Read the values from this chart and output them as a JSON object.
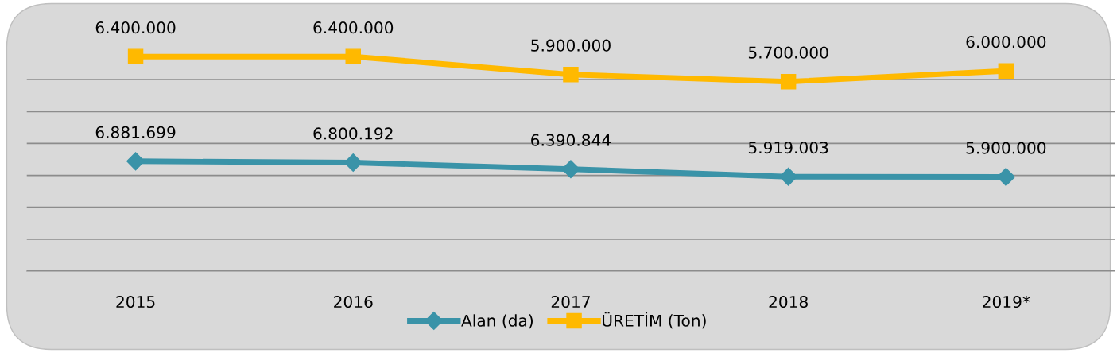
{
  "chart_data": {
    "type": "line",
    "categories": [
      "2015",
      "2016",
      "2017",
      "2018",
      "2019*"
    ],
    "series": [
      {
        "name": "Alan (da)",
        "color": "#3a93a8",
        "marker": "diamond",
        "values": [
          6881699,
          6800192,
          6390844,
          5919003,
          5900000
        ],
        "value_labels": [
          "6.881.699",
          "6.800.192",
          "6.390.844",
          "5.919.003",
          "5.900.000"
        ]
      },
      {
        "name": "ÜRETİM (Ton)",
        "color": "#ffb900",
        "marker": "square",
        "axis": "y2",
        "values": [
          6400000,
          6400000,
          5900000,
          5700000,
          6000000
        ],
        "value_labels": [
          "6.400.000",
          "6.400.000",
          "5.900.000",
          "5.700.000",
          "6.000.000"
        ]
      }
    ],
    "ylim": [
      0,
      14000000
    ],
    "yticks": [
      {
        "value": 0,
        "label": null
      },
      {
        "value": 2000000,
        "label": null
      },
      {
        "value": 4000000,
        "label": null
      },
      {
        "value": 6000000,
        "label": null
      },
      {
        "value": 8000000,
        "label": null
      },
      {
        "value": 10000000,
        "label": null
      },
      {
        "value": 12000000,
        "label": null
      },
      {
        "value": 14000000,
        "label": null
      }
    ],
    "y2lim": [
      400000,
      6650000
    ],
    "tick_labels": "x",
    "grid": "y",
    "legend": "bottom",
    "line_style": "solid"
  }
}
